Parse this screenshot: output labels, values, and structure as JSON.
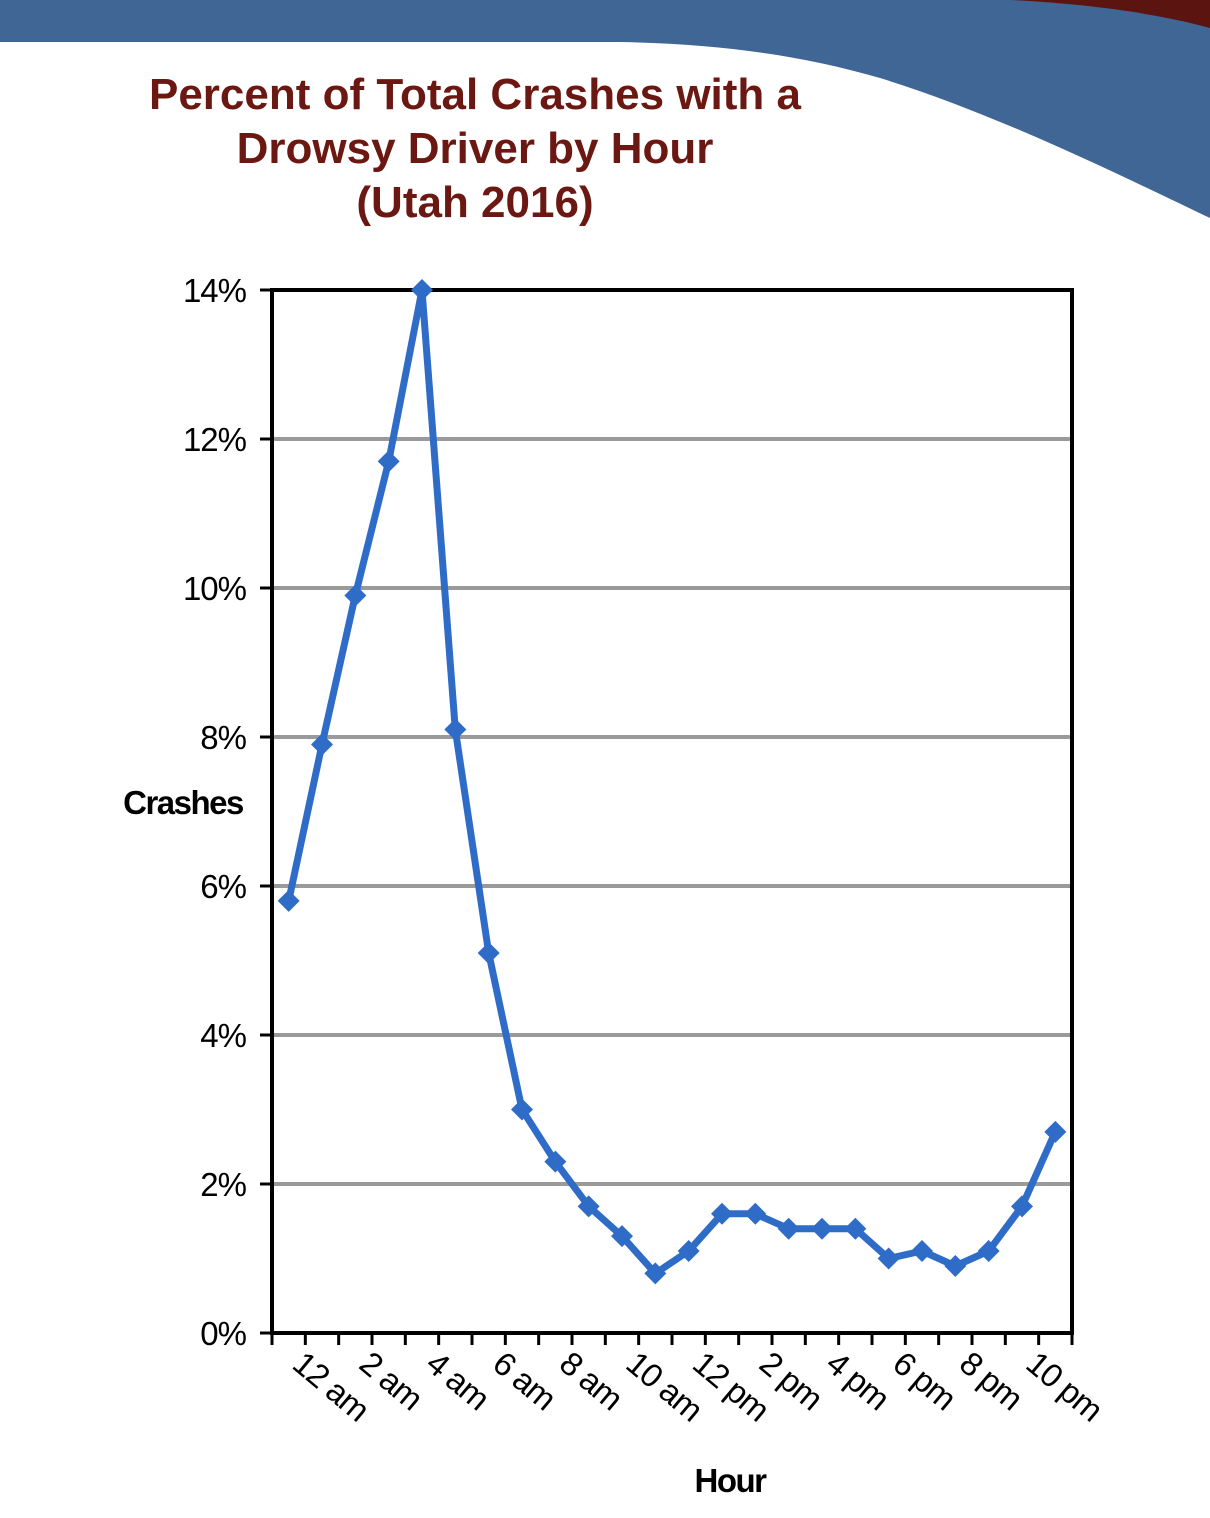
{
  "colors": {
    "banner_blue": "#3f6694",
    "banner_dark_red": "#5c1410",
    "title": "#6b1812",
    "series_line": "#2f6cc8",
    "gridline": "#9a9a9a",
    "axis": "#000000"
  },
  "chart_data": {
    "type": "line",
    "title_lines": [
      "Percent of Total Crashes with a",
      "Drowsy Driver by Hour",
      "(Utah 2016)"
    ],
    "xlabel": "Hour",
    "ylabel": "Crashes",
    "ylim": [
      0,
      14
    ],
    "y_ticks": [
      "0%",
      "2%",
      "4%",
      "6%",
      "8%",
      "10%",
      "12%",
      "14%"
    ],
    "x_tick_labels": [
      "12 am",
      "2 am",
      "4 am",
      "6 am",
      "8 am",
      "10 am",
      "12 pm",
      "2 pm",
      "4 pm",
      "6 pm",
      "8 pm",
      "10 pm"
    ],
    "grid": true,
    "legend": "none",
    "series": [
      {
        "values": [
          5.8,
          7.9,
          9.9,
          11.7,
          14.0,
          8.1,
          5.1,
          3.0,
          2.3,
          1.7,
          1.3,
          0.8,
          1.1,
          1.6,
          1.6,
          1.4,
          1.4,
          1.4,
          1.0,
          1.1,
          0.9,
          1.1,
          1.7,
          2.7
        ]
      }
    ]
  }
}
